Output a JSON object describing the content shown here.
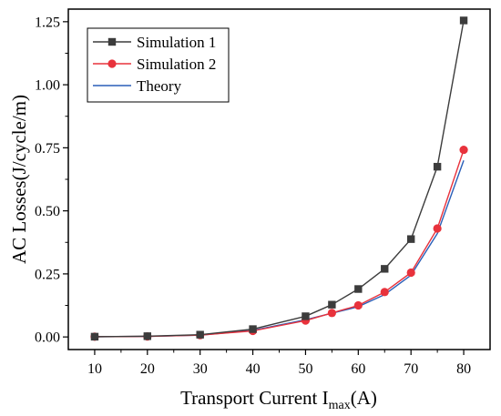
{
  "chart_data": {
    "type": "line",
    "title": "",
    "xlabel": {
      "main": "Transport Current I",
      "sub": "max",
      "tail": "(A)"
    },
    "ylabel": "AC Losses(J/cycle/m)",
    "xlim": [
      5,
      85
    ],
    "ylim": [
      -0.05,
      1.3
    ],
    "x_ticks": [
      10,
      20,
      30,
      40,
      50,
      60,
      70,
      80
    ],
    "x_minor_ticks": [
      15,
      25,
      35,
      45,
      55,
      65,
      75
    ],
    "y_ticks": [
      0.0,
      0.25,
      0.5,
      0.75,
      1.0,
      1.25
    ],
    "y_tick_labels": [
      "0.00",
      "0.25",
      "0.50",
      "0.75",
      "1.00",
      "1.25"
    ],
    "y_minor_ticks": [
      0.125,
      0.375,
      0.625,
      0.875,
      1.125
    ],
    "grid": false,
    "legend_position": "top-left",
    "series": [
      {
        "name": "Simulation 1",
        "color": "#3c3c3c",
        "marker": "square",
        "x": [
          10,
          20,
          30,
          40,
          50,
          55,
          60,
          65,
          70,
          75,
          80
        ],
        "values": [
          0.001,
          0.003,
          0.009,
          0.031,
          0.082,
          0.128,
          0.19,
          0.27,
          0.388,
          0.675,
          1.255
        ]
      },
      {
        "name": "Simulation 2",
        "color": "#e8323c",
        "marker": "circle",
        "x": [
          10,
          20,
          30,
          40,
          50,
          55,
          60,
          65,
          70,
          75,
          80
        ],
        "values": [
          0.001,
          0.002,
          0.007,
          0.024,
          0.065,
          0.095,
          0.125,
          0.178,
          0.255,
          0.43,
          0.742
        ]
      },
      {
        "name": "Theory",
        "color": "#2a5fb8",
        "marker": "none",
        "x": [
          10,
          20,
          30,
          40,
          50,
          55,
          60,
          65,
          70,
          75,
          80
        ],
        "values": [
          0.001,
          0.002,
          0.007,
          0.026,
          0.068,
          0.094,
          0.12,
          0.168,
          0.245,
          0.41,
          0.7
        ]
      }
    ]
  }
}
